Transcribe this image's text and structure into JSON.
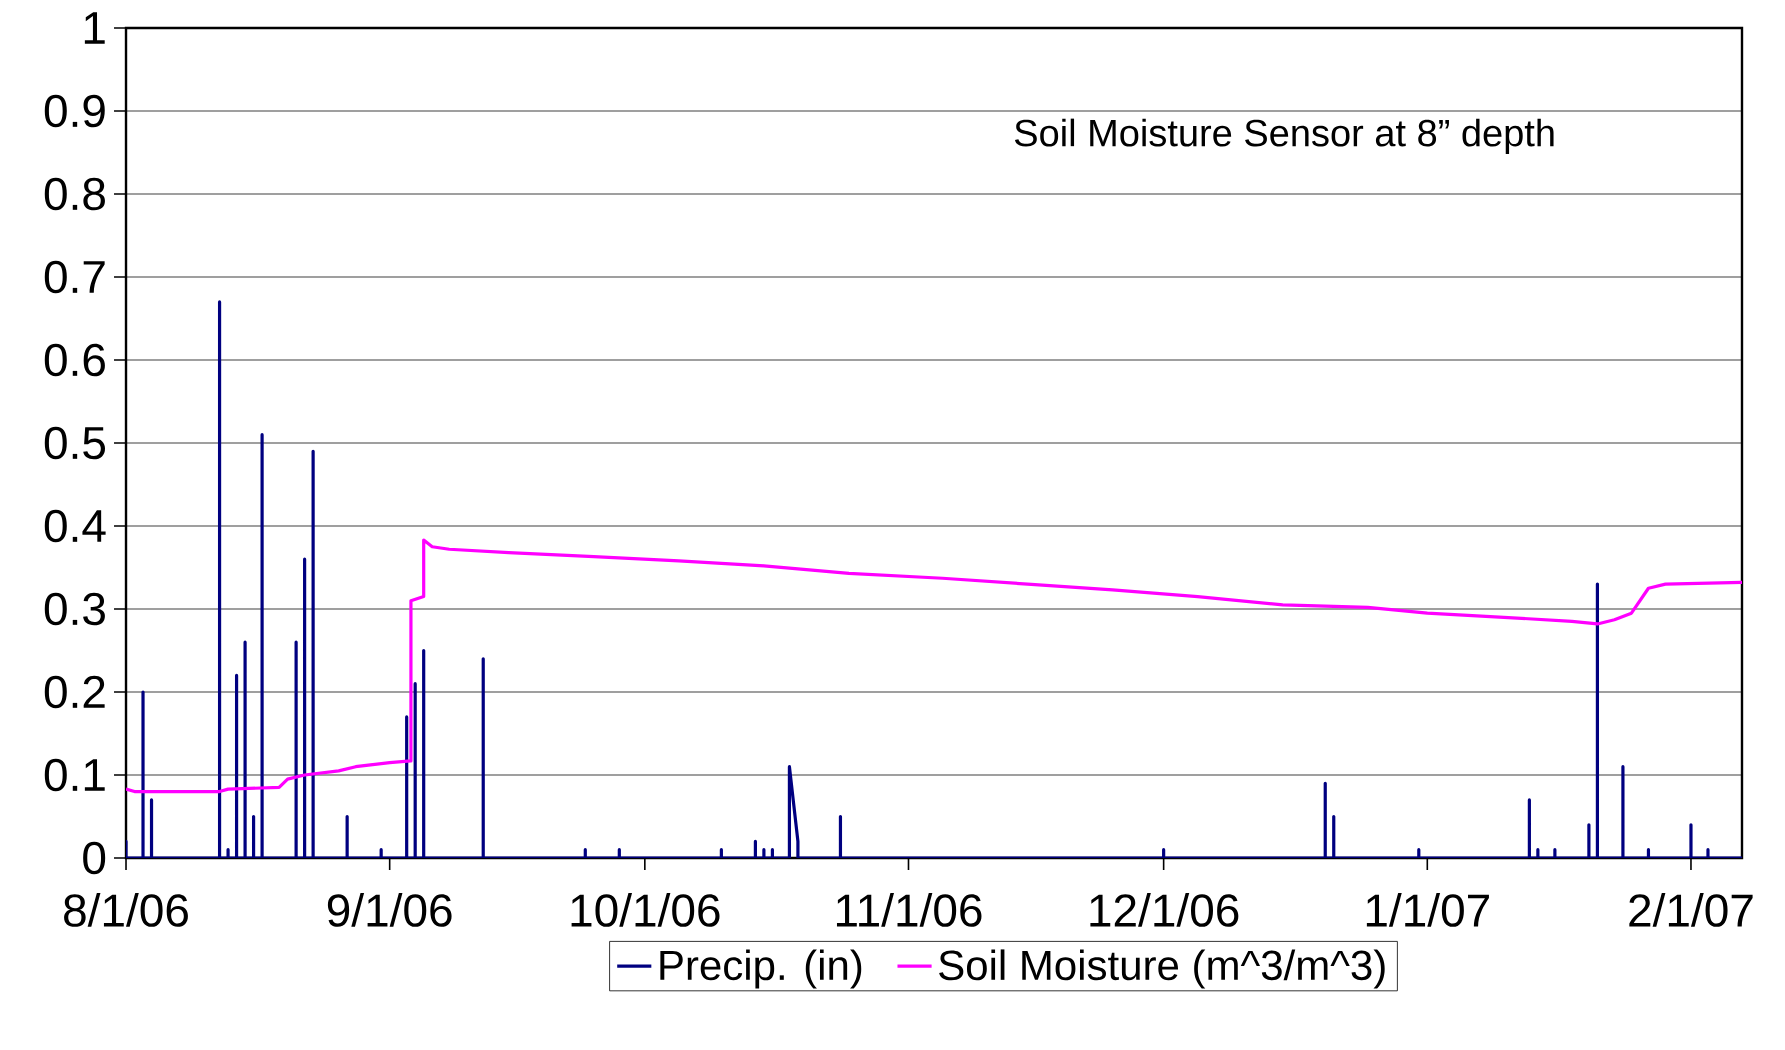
{
  "chart_data": {
    "type": "line",
    "title": "Soil Moisture Sensor at 8” depth",
    "xlim": [
      "2006-08-01",
      "2007-02-07"
    ],
    "xticks": [
      {
        "value": "2006-08-01",
        "label": "8/1/06"
      },
      {
        "value": "2006-09-01",
        "label": "9/1/06"
      },
      {
        "value": "2006-10-01",
        "label": "10/1/06"
      },
      {
        "value": "2006-11-01",
        "label": "11/1/06"
      },
      {
        "value": "2006-12-01",
        "label": "12/1/06"
      },
      {
        "value": "2007-01-01",
        "label": "1/1/07"
      },
      {
        "value": "2007-02-01",
        "label": "2/1/07"
      }
    ],
    "ylim": [
      0,
      1
    ],
    "yticks": [
      0,
      0.1,
      0.2,
      0.3,
      0.4,
      0.5,
      0.6,
      0.7,
      0.8,
      0.9,
      1
    ],
    "grid": "y",
    "legend": "bottom",
    "marker": "none",
    "line_style": "solid",
    "series": [
      {
        "name": "Precip. (in)",
        "color": "#000080",
        "x": [
          "2006-08-01",
          "2006-08-01",
          "2006-08-01",
          "2006-08-03",
          "2006-08-03",
          "2006-08-03",
          "2006-08-04",
          "2006-08-04",
          "2006-08-04",
          "2006-08-12",
          "2006-08-12",
          "2006-08-12",
          "2006-08-13",
          "2006-08-13",
          "2006-08-13",
          "2006-08-14",
          "2006-08-14",
          "2006-08-14",
          "2006-08-15",
          "2006-08-15",
          "2006-08-15",
          "2006-08-16",
          "2006-08-16",
          "2006-08-16",
          "2006-08-17",
          "2006-08-17",
          "2006-08-17",
          "2006-08-21",
          "2006-08-21",
          "2006-08-21",
          "2006-08-22",
          "2006-08-22",
          "2006-08-22",
          "2006-08-23",
          "2006-08-23",
          "2006-08-23",
          "2006-08-27",
          "2006-08-27",
          "2006-08-27",
          "2006-08-31",
          "2006-08-31",
          "2006-08-31",
          "2006-09-03",
          "2006-09-03",
          "2006-09-03",
          "2006-09-04",
          "2006-09-04",
          "2006-09-04",
          "2006-09-05",
          "2006-09-05",
          "2006-09-05",
          "2006-09-12",
          "2006-09-12",
          "2006-09-12",
          "2006-09-24",
          "2006-09-24",
          "2006-09-24",
          "2006-09-28",
          "2006-09-28",
          "2006-09-28",
          "2006-10-10",
          "2006-10-10",
          "2006-10-10",
          "2006-10-14",
          "2006-10-14",
          "2006-10-14",
          "2006-10-15",
          "2006-10-15",
          "2006-10-15",
          "2006-10-16",
          "2006-10-16",
          "2006-10-16",
          "2006-10-18",
          "2006-10-18",
          "2006-10-19",
          "2006-10-19",
          "2006-10-24",
          "2006-10-24",
          "2006-10-24",
          "2006-12-01",
          "2006-12-01",
          "2006-12-01",
          "2006-12-20",
          "2006-12-20",
          "2006-12-20",
          "2006-12-21",
          "2006-12-21",
          "2006-12-21",
          "2006-12-31",
          "2006-12-31",
          "2006-12-31",
          "2007-01-13",
          "2007-01-13",
          "2007-01-13",
          "2007-01-14",
          "2007-01-14",
          "2007-01-14",
          "2007-01-16",
          "2007-01-16",
          "2007-01-16",
          "2007-01-20",
          "2007-01-20",
          "2007-01-20",
          "2007-01-21",
          "2007-01-21",
          "2007-01-21",
          "2007-01-24",
          "2007-01-24",
          "2007-01-24",
          "2007-01-27",
          "2007-01-27",
          "2007-01-27",
          "2007-02-01",
          "2007-02-01",
          "2007-02-01",
          "2007-02-03",
          "2007-02-03",
          "2007-02-03",
          "2007-02-07"
        ],
        "values": [
          0,
          0.02,
          0,
          0,
          0.2,
          0,
          0,
          0.07,
          0,
          0,
          0.67,
          0,
          0,
          0.01,
          0,
          0,
          0.22,
          0,
          0,
          0.26,
          0,
          0,
          0.05,
          0,
          0,
          0.51,
          0,
          0,
          0.26,
          0,
          0,
          0.36,
          0,
          0,
          0.49,
          0,
          0,
          0.05,
          0,
          0,
          0.01,
          0,
          0,
          0.17,
          0,
          0,
          0.21,
          0,
          0,
          0.25,
          0,
          0,
          0.24,
          0,
          0,
          0.01,
          0,
          0,
          0.01,
          0,
          0,
          0.01,
          0,
          0,
          0.02,
          0,
          0,
          0.01,
          0,
          0,
          0.01,
          0,
          0,
          0.11,
          0.02,
          0,
          0,
          0.05,
          0,
          0,
          0.01,
          0,
          0,
          0.09,
          0,
          0,
          0.05,
          0,
          0,
          0.01,
          0,
          0,
          0.07,
          0,
          0,
          0.01,
          0,
          0,
          0.01,
          0,
          0,
          0.04,
          0,
          0,
          0.33,
          0,
          0,
          0.11,
          0,
          0,
          0.01,
          0,
          0,
          0.04,
          0,
          0,
          0.01,
          0,
          0
        ]
      },
      {
        "name": "Soil Moisture (m^3/m^3)",
        "color": "#ff00ff",
        "x": [
          "2006-08-01",
          "2006-08-02",
          "2006-08-12",
          "2006-08-13",
          "2006-08-19",
          "2006-08-20",
          "2006-08-22",
          "2006-08-26",
          "2006-08-28",
          "2006-09-01",
          "2006-09-03T12:00",
          "2006-09-03T12:00",
          "2006-09-05",
          "2006-09-05",
          "2006-09-06",
          "2006-09-08",
          "2006-09-15",
          "2006-09-25",
          "2006-10-05",
          "2006-10-15",
          "2006-10-25",
          "2006-11-05",
          "2006-11-15",
          "2006-11-25",
          "2006-12-05",
          "2006-12-15",
          "2006-12-25",
          "2007-01-01",
          "2007-01-10",
          "2007-01-18",
          "2007-01-21",
          "2007-01-23",
          "2007-01-25",
          "2007-01-26",
          "2007-01-27",
          "2007-01-29",
          "2007-02-07"
        ],
        "values": [
          0.083,
          0.08,
          0.08,
          0.083,
          0.085,
          0.095,
          0.1,
          0.105,
          0.11,
          0.115,
          0.117,
          0.31,
          0.315,
          0.383,
          0.375,
          0.372,
          0.368,
          0.363,
          0.358,
          0.352,
          0.343,
          0.337,
          0.33,
          0.323,
          0.315,
          0.305,
          0.302,
          0.295,
          0.29,
          0.285,
          0.282,
          0.287,
          0.295,
          0.31,
          0.325,
          0.33,
          0.332
        ]
      }
    ]
  }
}
